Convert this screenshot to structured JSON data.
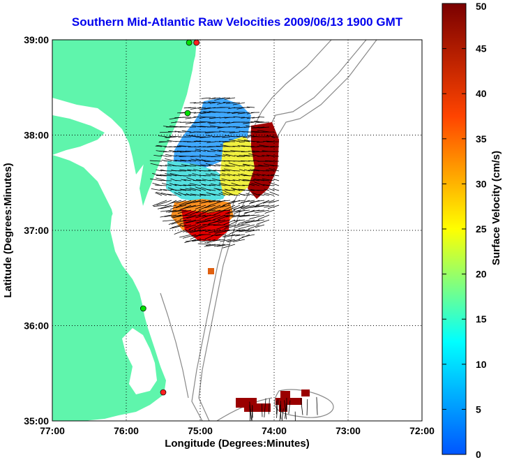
{
  "title": "Southern Mid-Atlantic Raw Velocities 2009/06/13 1900 GMT",
  "xaxis": {
    "label": "Longitude (Degrees:Minutes)",
    "ticks": [
      {
        "value": -77,
        "label": "77:00"
      },
      {
        "value": -76,
        "label": "76:00"
      },
      {
        "value": -75,
        "label": "75:00"
      },
      {
        "value": -74,
        "label": "74:00"
      },
      {
        "value": -73,
        "label": "73:00"
      },
      {
        "value": -72,
        "label": "72:00"
      }
    ],
    "range": [
      -77,
      -72
    ]
  },
  "yaxis": {
    "label": "Latitude (Degrees:Minutes)",
    "ticks": [
      {
        "value": 39,
        "label": "39:00"
      },
      {
        "value": 38,
        "label": "38:00"
      },
      {
        "value": 37,
        "label": "37:00"
      },
      {
        "value": 36,
        "label": "36:00"
      },
      {
        "value": 35,
        "label": "35:00"
      }
    ],
    "range": [
      35,
      39
    ]
  },
  "colorbar": {
    "label": "Surface Velocity (cm/s)",
    "min": 0,
    "max": 50,
    "ticks": [
      {
        "value": 0,
        "label": "0"
      },
      {
        "value": 5,
        "label": "5"
      },
      {
        "value": 10,
        "label": "10"
      },
      {
        "value": 15,
        "label": "15"
      },
      {
        "value": 20,
        "label": "20"
      },
      {
        "value": 25,
        "label": "25"
      },
      {
        "value": 30,
        "label": "30"
      },
      {
        "value": 35,
        "label": "35"
      },
      {
        "value": 40,
        "label": "40"
      },
      {
        "value": 45,
        "label": "45"
      },
      {
        "value": 50,
        "label": "50"
      }
    ],
    "colormap": [
      "#0000ff",
      "#00ffff",
      "#ffff00",
      "#ff0000",
      "#800000"
    ]
  },
  "colors": {
    "land": "#5ff5ac",
    "water": "#ffffff",
    "bathymetry": "#888888",
    "grid": "#000000",
    "station": "#00e000",
    "station_alt": "#ff2020"
  },
  "stations": [
    {
      "lon": -75.05,
      "lat": 38.97,
      "color": "station_alt"
    },
    {
      "lon": -75.15,
      "lat": 38.97,
      "color": "station"
    },
    {
      "lon": -75.17,
      "lat": 38.23,
      "color": "station"
    },
    {
      "lon": -75.77,
      "lat": 36.18,
      "color": "station"
    },
    {
      "lon": -75.5,
      "lat": 35.3,
      "color": "station_alt"
    }
  ]
}
